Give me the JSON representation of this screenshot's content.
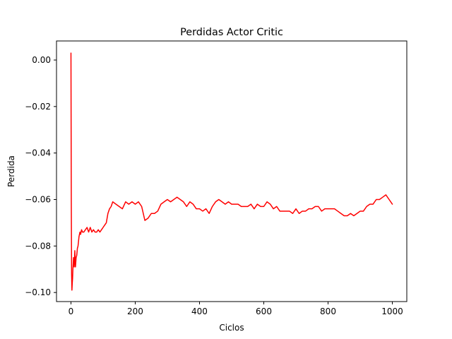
{
  "chart_data": {
    "type": "line",
    "title": "Perdidas Actor Critic",
    "xlabel": "Ciclos",
    "ylabel": "Perdida",
    "xlim": [
      -45,
      1045
    ],
    "ylim": [
      -0.1039,
      0.0082
    ],
    "xticks": [
      0,
      200,
      400,
      600,
      800,
      1000
    ],
    "yticks": [
      0.0,
      -0.02,
      -0.04,
      -0.06,
      -0.08,
      -0.1
    ],
    "xtick_labels": [
      "0",
      "200",
      "400",
      "600",
      "800",
      "1000"
    ],
    "ytick_labels": [
      "0.00",
      "−0.02",
      "−0.04",
      "−0.06",
      "−0.08",
      "−0.10"
    ],
    "grid": false,
    "series": [
      {
        "color": "#ff0000",
        "x": [
          0,
          1,
          2,
          3,
          4,
          5,
          6,
          8,
          10,
          12,
          14,
          16,
          18,
          20,
          22,
          25,
          28,
          30,
          33,
          36,
          40,
          45,
          50,
          55,
          60,
          65,
          70,
          75,
          80,
          85,
          90,
          95,
          100,
          105,
          110,
          115,
          120,
          125,
          130,
          140,
          150,
          160,
          170,
          180,
          190,
          200,
          210,
          220,
          230,
          240,
          250,
          260,
          270,
          280,
          290,
          300,
          310,
          320,
          330,
          340,
          350,
          360,
          370,
          380,
          390,
          400,
          410,
          420,
          430,
          440,
          450,
          460,
          470,
          480,
          490,
          500,
          510,
          520,
          530,
          540,
          550,
          560,
          570,
          580,
          590,
          600,
          610,
          620,
          630,
          640,
          650,
          660,
          670,
          680,
          690,
          700,
          710,
          720,
          730,
          740,
          750,
          760,
          770,
          780,
          790,
          800,
          810,
          820,
          830,
          840,
          850,
          860,
          870,
          880,
          890,
          900,
          910,
          920,
          930,
          940,
          950,
          960,
          970,
          980,
          990,
          1000
        ],
        "y": [
          0.003,
          -0.06,
          -0.092,
          -0.099,
          -0.096,
          -0.094,
          -0.09,
          -0.085,
          -0.089,
          -0.082,
          -0.089,
          -0.085,
          -0.084,
          -0.081,
          -0.08,
          -0.076,
          -0.074,
          -0.075,
          -0.073,
          -0.074,
          -0.074,
          -0.073,
          -0.072,
          -0.074,
          -0.072,
          -0.074,
          -0.073,
          -0.074,
          -0.074,
          -0.073,
          -0.074,
          -0.073,
          -0.072,
          -0.071,
          -0.07,
          -0.066,
          -0.064,
          -0.063,
          -0.061,
          -0.062,
          -0.063,
          -0.064,
          -0.061,
          -0.062,
          -0.061,
          -0.062,
          -0.061,
          -0.063,
          -0.069,
          -0.068,
          -0.066,
          -0.066,
          -0.065,
          -0.062,
          -0.061,
          -0.06,
          -0.061,
          -0.06,
          -0.059,
          -0.06,
          -0.061,
          -0.063,
          -0.061,
          -0.062,
          -0.064,
          -0.064,
          -0.065,
          -0.064,
          -0.066,
          -0.063,
          -0.061,
          -0.06,
          -0.061,
          -0.062,
          -0.061,
          -0.062,
          -0.062,
          -0.062,
          -0.063,
          -0.063,
          -0.063,
          -0.062,
          -0.064,
          -0.062,
          -0.063,
          -0.063,
          -0.061,
          -0.062,
          -0.064,
          -0.063,
          -0.065,
          -0.065,
          -0.065,
          -0.065,
          -0.066,
          -0.064,
          -0.066,
          -0.065,
          -0.065,
          -0.064,
          -0.064,
          -0.063,
          -0.063,
          -0.065,
          -0.064,
          -0.064,
          -0.064,
          -0.064,
          -0.065,
          -0.066,
          -0.067,
          -0.067,
          -0.066,
          -0.067,
          -0.066,
          -0.065,
          -0.065,
          -0.063,
          -0.062,
          -0.062,
          -0.06,
          -0.06,
          -0.059,
          -0.058,
          -0.06,
          -0.062
        ]
      }
    ]
  }
}
